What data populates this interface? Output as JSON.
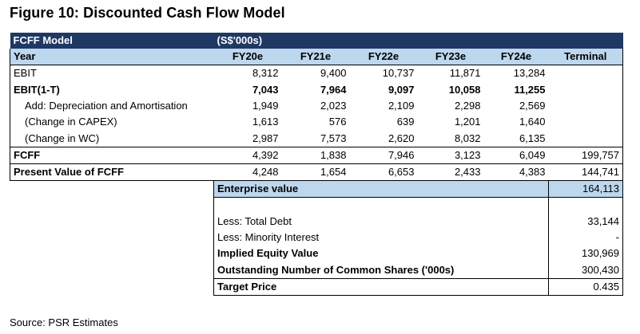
{
  "title": "Figure 10: Discounted Cash Flow Model",
  "source": "Source: PSR Estimates",
  "header": {
    "model": "FCFF Model",
    "units": "(S$'000s)"
  },
  "columns": {
    "year": "Year",
    "years": [
      "FY20e",
      "FY21e",
      "FY22e",
      "FY23e",
      "FY24e"
    ],
    "terminal": "Terminal"
  },
  "rows": {
    "ebit": {
      "label": "EBIT",
      "values": [
        "8,312",
        "9,400",
        "10,737",
        "11,871",
        "13,284"
      ]
    },
    "ebit1t": {
      "label": "EBIT(1-T)",
      "values": [
        "7,043",
        "7,964",
        "9,097",
        "10,058",
        "11,255"
      ]
    },
    "da": {
      "label": "Add: Depreciation and Amortisation",
      "values": [
        "1,949",
        "2,023",
        "2,109",
        "2,298",
        "2,569"
      ]
    },
    "capex": {
      "label": "(Change in CAPEX)",
      "values": [
        "1,613",
        "576",
        "639",
        "1,201",
        "1,640"
      ]
    },
    "wc": {
      "label": "(Change in WC)",
      "values": [
        "2,987",
        "7,573",
        "2,620",
        "8,032",
        "6,135"
      ]
    },
    "fcff": {
      "label": "FCFF",
      "values": [
        "4,392",
        "1,838",
        "7,946",
        "3,123",
        "6,049"
      ],
      "terminal": "199,757"
    },
    "pv": {
      "label": "Present Value of FCFF",
      "values": [
        "4,248",
        "1,654",
        "6,653",
        "2,433",
        "4,383"
      ],
      "terminal": "144,741"
    }
  },
  "summary": {
    "enterprise": {
      "label": "Enterprise value",
      "value": "164,113"
    },
    "debt": {
      "label": "Less: Total Debt",
      "value": "33,144"
    },
    "minority": {
      "label": "Less: Minority Interest",
      "value": "-"
    },
    "equity": {
      "label": "Implied Equity Value",
      "value": "130,969"
    },
    "shares": {
      "label": "Outstanding Number of Common Shares ('000s)",
      "value": "300,430"
    },
    "target": {
      "label": "Target Price",
      "value": "0.435"
    }
  }
}
